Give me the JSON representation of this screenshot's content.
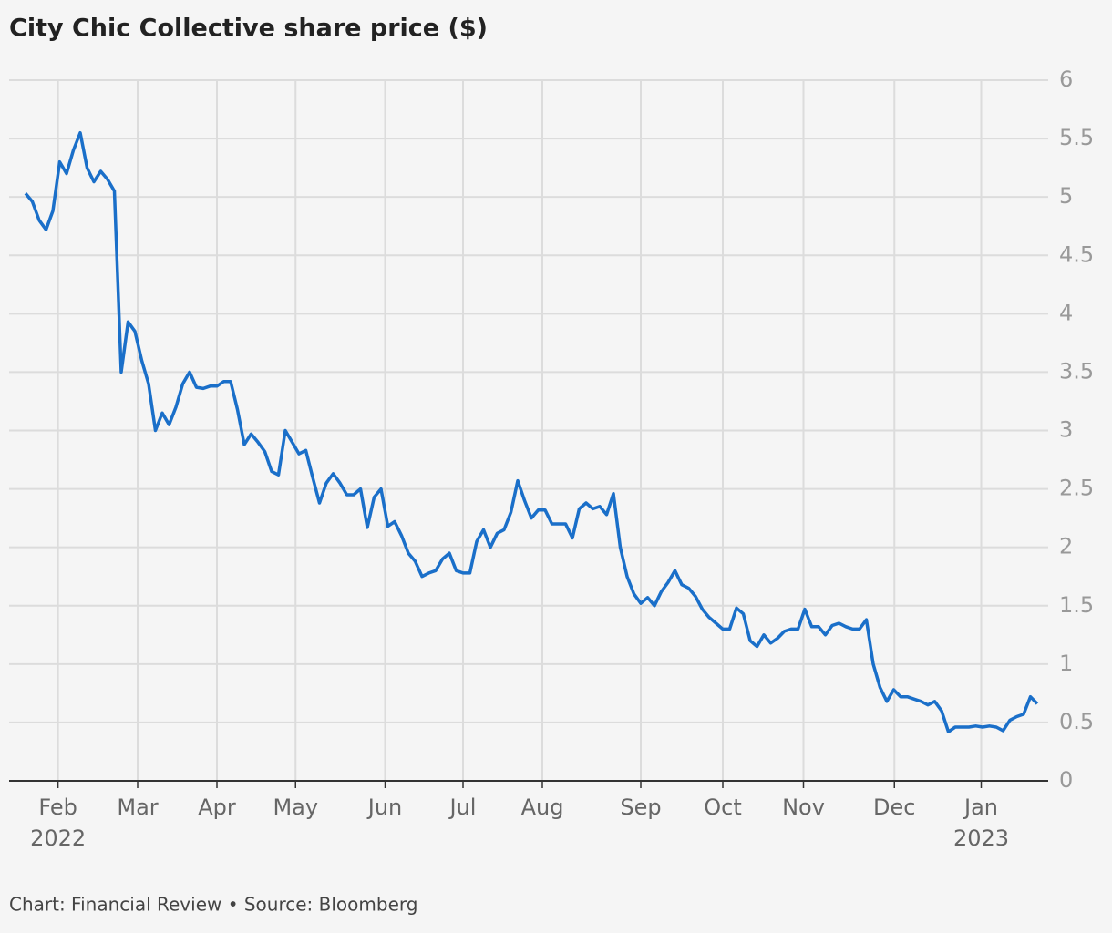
{
  "chart_data": {
    "type": "line",
    "title": "City Chic Collective share price ($)",
    "source": "Chart: Financial Review • Source: Bloomberg",
    "series": [
      {
        "color": "#1a6fc9",
        "values": [
          5.03,
          4.96,
          4.8,
          4.72,
          4.88,
          5.3,
          5.2,
          5.4,
          5.55,
          5.25,
          5.13,
          5.22,
          5.15,
          5.05,
          3.5,
          3.93,
          3.85,
          3.6,
          3.4,
          3.0,
          3.15,
          3.05,
          3.2,
          3.4,
          3.5,
          3.37,
          3.36,
          3.38,
          3.38,
          3.42,
          3.42,
          3.18,
          2.88,
          2.97,
          2.9,
          2.82,
          2.65,
          2.62,
          3.0,
          2.9,
          2.8,
          2.83,
          2.6,
          2.38,
          2.55,
          2.63,
          2.55,
          2.45,
          2.45,
          2.5,
          2.17,
          2.43,
          2.5,
          2.18,
          2.22,
          2.1,
          1.95,
          1.88,
          1.75,
          1.78,
          1.8,
          1.9,
          1.95,
          1.8,
          1.78,
          1.78,
          2.05,
          2.15,
          2.0,
          2.12,
          2.15,
          2.3,
          2.57,
          2.4,
          2.25,
          2.32,
          2.32,
          2.2,
          2.2,
          2.2,
          2.08,
          2.33,
          2.38,
          2.33,
          2.35,
          2.28,
          2.46,
          2.0,
          1.75,
          1.6,
          1.52,
          1.57,
          1.5,
          1.62,
          1.7,
          1.8,
          1.68,
          1.65,
          1.58,
          1.47,
          1.4,
          1.35,
          1.3,
          1.3,
          1.48,
          1.43,
          1.2,
          1.15,
          1.25,
          1.18,
          1.22,
          1.28,
          1.3,
          1.3,
          1.47,
          1.32,
          1.32,
          1.25,
          1.33,
          1.35,
          1.32,
          1.3,
          1.3,
          1.38,
          1.0,
          0.8,
          0.68,
          0.78,
          0.72,
          0.72,
          0.7,
          0.68,
          0.65,
          0.68,
          0.6,
          0.42,
          0.46,
          0.46,
          0.46,
          0.47,
          0.46,
          0.47,
          0.46,
          0.43,
          0.52,
          0.55,
          0.57,
          0.72,
          0.66
        ]
      }
    ],
    "xlim": [
      0,
      148
    ],
    "xticks": [
      {
        "value": 4.75,
        "label": "Feb"
      },
      {
        "value": 16.4,
        "label": "Mar"
      },
      {
        "value": 28,
        "label": "Apr"
      },
      {
        "value": 39.5,
        "label": "May"
      },
      {
        "value": 52.6,
        "label": "Jun"
      },
      {
        "value": 64,
        "label": "Jul"
      },
      {
        "value": 75.6,
        "label": "Aug"
      },
      {
        "value": 90,
        "label": "Sep"
      },
      {
        "value": 102,
        "label": "Oct"
      },
      {
        "value": 113.8,
        "label": "Nov"
      },
      {
        "value": 127.1,
        "label": "Dec"
      },
      {
        "value": 139.8,
        "label": "Jan"
      }
    ],
    "xtick_years": [
      {
        "value": 4.75,
        "label": "2022"
      },
      {
        "value": 139.8,
        "label": "2023"
      }
    ],
    "ylim": [
      0,
      6
    ],
    "yticks": [
      0,
      0.5,
      1,
      1.5,
      2,
      2.5,
      3,
      3.5,
      4,
      4.5,
      5,
      5.5,
      6
    ],
    "grid": true
  }
}
